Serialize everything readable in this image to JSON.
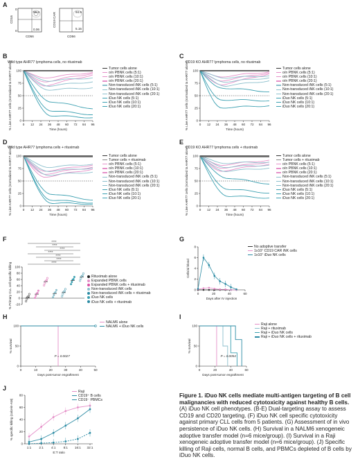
{
  "panel_letters": [
    "A",
    "B",
    "C",
    "D",
    "E",
    "F",
    "G",
    "H",
    "I",
    "J"
  ],
  "panelA": {
    "y1": "CD16",
    "x1": "CD56",
    "q1_top": "96.9",
    "q1_bot": "0.06",
    "y2": "CD19 CAR",
    "x2": "CD56",
    "q2_top": "94.9",
    "q2_bot": "5.15",
    "tick0": "0"
  },
  "panelB": {
    "title": "Wild type AHR77 lymphoma cells, no rituximab"
  },
  "panelC": {
    "title": "CD19 KO AHR77 lymphoma cells, no rituximab"
  },
  "panelD": {
    "title": "Wild type AHR77 lymphoma cells + rituximab"
  },
  "panelE": {
    "title": "CD19 KO AHR77 lymphoma cells + rituximab"
  },
  "kinetics_axes": {
    "ylabel": "% Live AHR77 cells (normalized to AHR77 alone)",
    "xlabel": "Time (hours)",
    "xticks": [
      "0",
      "12",
      "24",
      "36",
      "48",
      "60",
      "72",
      "84",
      "96"
    ],
    "yticks": [
      "0",
      "25",
      "50",
      "75",
      "100"
    ]
  },
  "legend_noritux": [
    "Tumor cells alone",
    "o/n PBNK cells (5:1)",
    "o/n PBNK cells (10:1)",
    "o/n PBNK cells (20:1)",
    "Non-transduced iNK cells (5:1)",
    "Non-transduced iNK cells (10:1)",
    "Non-transduced iNK cells (20:1)",
    "iDuo NK cells (5:1)",
    "iDuo NK cells (10:1)",
    "iDuo NK cells (20:1)"
  ],
  "legend_ritux": [
    "Tumor cells alone",
    "Tumor cells + rituximab",
    "o/n PBNK cells (5:1)",
    "o/n PBNK cells (10:1)",
    "o/n PBNK cells (20:1)",
    "Non-transduced iNK cells (5:1)",
    "Non-transduced iNK cells (10:1)",
    "Non-transduced iNK cells (20:1)",
    "iDuo NK cells (5:1)",
    "iDuo NK cells (10:1)",
    "iDuo NK cells (20:1)"
  ],
  "colors": {
    "tumor": "#333333",
    "pbnk": "#e58fc8",
    "nt": "#8bbfcc",
    "iduo": "#3a9fb0",
    "pink": "#d94fa5",
    "teal": "#2a8aa3"
  },
  "panelF": {
    "ylabel": "% Primary CLL cell specific killing",
    "yticks": [
      "-20",
      "0",
      "20",
      "40",
      "60",
      "80",
      "100"
    ],
    "sig": [
      "****",
      "****",
      "****",
      "****",
      "****",
      "****",
      "****"
    ],
    "legend": [
      "Rituximab alone",
      "Expanded PBNK cells",
      "Expanded PBNK cells + rituximab",
      "Non-transduced iNK cells",
      "Non-transduced iNK cells + rituximab",
      "iDuo NK cells",
      "iDuo NK cells + rituximab"
    ],
    "chart_data": {
      "type": "scatter",
      "categories": [
        "Rituximab alone",
        "Expanded PBNK cells",
        "Expanded PBNK cells + rituximab",
        "Non-transduced iNK cells",
        "Non-transduced iNK cells + rituximab",
        "iDuo NK cells",
        "iDuo NK cells + rituximab"
      ],
      "means": [
        2,
        13,
        53,
        15,
        18,
        57,
        68
      ],
      "ylim": [
        -20,
        100
      ]
    }
  },
  "panelG": {
    "ylabel": "Cells/ul blood",
    "xlabel": "Days after IV injection",
    "yticks": [
      "0",
      "2",
      "4",
      "6",
      "8"
    ],
    "xticks": [
      "0",
      "20",
      "40",
      "60"
    ],
    "legend": [
      "No adoptive transfer",
      "1x10⁷ CD19 CAR iNK cells",
      "1x10⁷ iDuo NK cells"
    ],
    "chart_data": {
      "type": "line",
      "series": [
        {
          "name": "No adoptive transfer",
          "x": [
            0,
            7,
            14,
            21,
            28,
            35,
            42,
            49
          ],
          "y": [
            0,
            0,
            0,
            0,
            0,
            0,
            0,
            0
          ]
        },
        {
          "name": "1x10⁷ CD19 CAR iNK cells",
          "x": [
            0,
            7,
            14,
            21,
            28,
            35,
            42,
            49
          ],
          "y": [
            0.1,
            0.3,
            0.4,
            0.2,
            0.1,
            0.1,
            0,
            0
          ]
        },
        {
          "name": "1x10⁷ iDuo NK cells",
          "x": [
            0,
            7,
            14,
            21,
            28,
            35,
            42,
            49
          ],
          "y": [
            0.2,
            6.0,
            4.6,
            2.6,
            1.6,
            1.1,
            0.5,
            0.1
          ]
        }
      ],
      "xlim": [
        0,
        60
      ],
      "ylim": [
        0,
        8
      ]
    }
  },
  "panelH": {
    "ylabel": "% survival",
    "xlabel": "Days post-tumor engraftment",
    "yticks": [
      "0",
      "50",
      "100"
    ],
    "xticks": [
      "0",
      "10",
      "20",
      "30",
      "40",
      "50"
    ],
    "pvalue": "P = 0.0027",
    "legend": [
      "NALM6 alone",
      "NALM6 + iDuo NK cells"
    ],
    "chart_data": {
      "type": "line",
      "series": [
        {
          "name": "NALM6 alone",
          "drop_day": 25
        },
        {
          "name": "NALM6 + iDuo NK cells",
          "drop_day": null
        }
      ],
      "xlim": [
        0,
        50
      ],
      "ylim": [
        0,
        100
      ]
    }
  },
  "panelI": {
    "ylabel": "% survival",
    "xlabel": "Days post-tumor engraftment",
    "yticks": [
      "0",
      "50",
      "100"
    ],
    "xticks": [
      "0",
      "20",
      "40",
      "60"
    ],
    "pvalue": "P = 0.0054",
    "legend": [
      "Raji alone",
      "Raji + rituximab",
      "Raji + iDuo NK cells",
      "Raji + iDuo NK cells + rituximab"
    ],
    "chart_data": {
      "type": "line",
      "series": [
        {
          "name": "Raji alone",
          "median_day": 22
        },
        {
          "name": "Raji + rituximab",
          "median_day": 34
        },
        {
          "name": "Raji + iDuo NK cells",
          "median_day": 45
        },
        {
          "name": "Raji + iDuo NK cells + rituximab",
          "median_day": 51
        }
      ],
      "xlim": [
        0,
        60
      ],
      "ylim": [
        0,
        100
      ]
    }
  },
  "panelJ": {
    "ylabel": "% specific killing (calcein-AM)",
    "xlabel": "E:T ratio",
    "yticks": [
      "0",
      "20",
      "40",
      "60",
      "80"
    ],
    "xticks": [
      "1:1",
      "2:1",
      "4:1",
      "8:1",
      "16:1",
      "32:1"
    ],
    "legend": [
      "Raji",
      "CD19⁺ B cells",
      "CD19⁻ PBMCs"
    ],
    "chart_data": {
      "type": "line",
      "categories": [
        "1:1",
        "2:1",
        "4:1",
        "8:1",
        "16:1",
        "32:1"
      ],
      "series": [
        {
          "name": "Raji",
          "values": [
            12,
            28,
            44,
            54,
            60,
            63
          ]
        },
        {
          "name": "CD19⁺ B cells",
          "values": [
            3,
            8,
            18,
            30,
            42,
            57
          ]
        },
        {
          "name": "CD19⁻ PBMCs",
          "values": [
            0,
            1,
            2,
            4,
            8,
            18
          ]
        }
      ],
      "ylim": [
        0,
        80
      ]
    }
  },
  "caption": {
    "bold": "Figure 1. iDuo NK cells mediate multi-antigen targeting of B cell malignancies with reduced cytotoxicity against healthy B cells.",
    "body": " (A) iDuo NK cell phenotypes. (B-E) Dual-targeting assay to assess CD19 and CD20 targeting. (F) iDuo NK cell specific cytotoxicity against primary CLL cells from 5 patients. (G) Assessment of in vivo persistence of iDuo NK cells. (H) Survival in a NALM6 xenogeneic adoptive transfer model (n=6 mice/group). (I) Survival in a Raji xenogeneic adoptive transfer model (n=6 mice/group). (J) Specific killing of Raji cells, normal B cells, and PBMCs depleted of B cells by iDuo NK cells."
  }
}
